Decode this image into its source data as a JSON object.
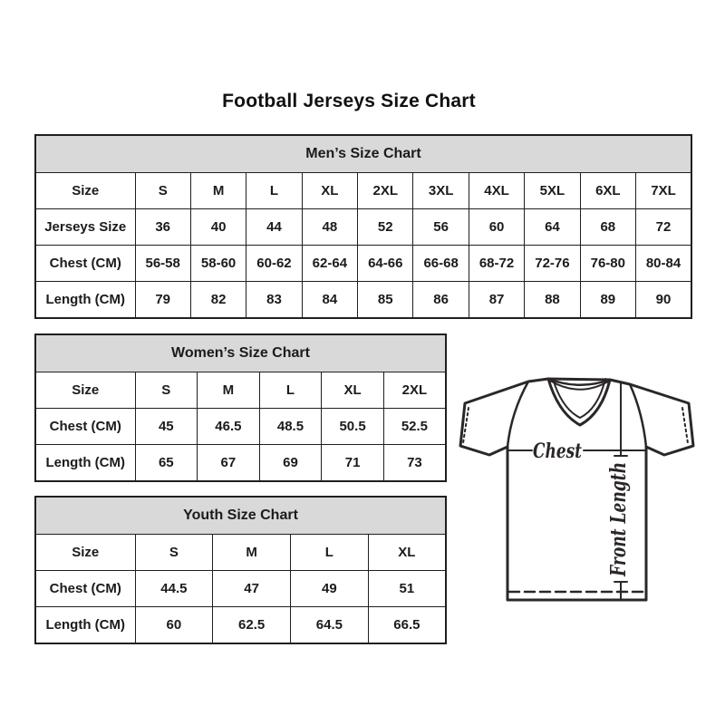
{
  "page": {
    "title": "Football Jerseys Size Chart"
  },
  "tables": {
    "men": {
      "title": "Men’s Size Chart",
      "rows": [
        {
          "label": "Size",
          "values": [
            "S",
            "M",
            "L",
            "XL",
            "2XL",
            "3XL",
            "4XL",
            "5XL",
            "6XL",
            "7XL"
          ]
        },
        {
          "label": "Jerseys Size",
          "values": [
            "36",
            "40",
            "44",
            "48",
            "52",
            "56",
            "60",
            "64",
            "68",
            "72"
          ]
        },
        {
          "label": "Chest (CM)",
          "values": [
            "56-58",
            "58-60",
            "60-62",
            "62-64",
            "64-66",
            "66-68",
            "68-72",
            "72-76",
            "76-80",
            "80-84"
          ]
        },
        {
          "label": "Length (CM)",
          "values": [
            "79",
            "82",
            "83",
            "84",
            "85",
            "86",
            "87",
            "88",
            "89",
            "90"
          ]
        }
      ]
    },
    "women": {
      "title": "Women’s Size Chart",
      "rows": [
        {
          "label": "Size",
          "values": [
            "S",
            "M",
            "L",
            "XL",
            "2XL"
          ]
        },
        {
          "label": "Chest (CM)",
          "values": [
            "45",
            "46.5",
            "48.5",
            "50.5",
            "52.5"
          ]
        },
        {
          "label": "Length (CM)",
          "values": [
            "65",
            "67",
            "69",
            "71",
            "73"
          ]
        }
      ]
    },
    "youth": {
      "title": "Youth Size Chart",
      "rows": [
        {
          "label": "Size",
          "values": [
            "S",
            "M",
            "L",
            "XL"
          ]
        },
        {
          "label": "Chest (CM)",
          "values": [
            "44.5",
            "47",
            "49",
            "51"
          ]
        },
        {
          "label": "Length (CM)",
          "values": [
            "60",
            "62.5",
            "64.5",
            "66.5"
          ]
        }
      ]
    }
  },
  "diagram": {
    "chest_label": "Chest",
    "front_length_label": "Front Length"
  },
  "colors": {
    "table_header_bg": "#d9d9d9",
    "border": "#1f1f1f",
    "ink": "#2b2728"
  }
}
